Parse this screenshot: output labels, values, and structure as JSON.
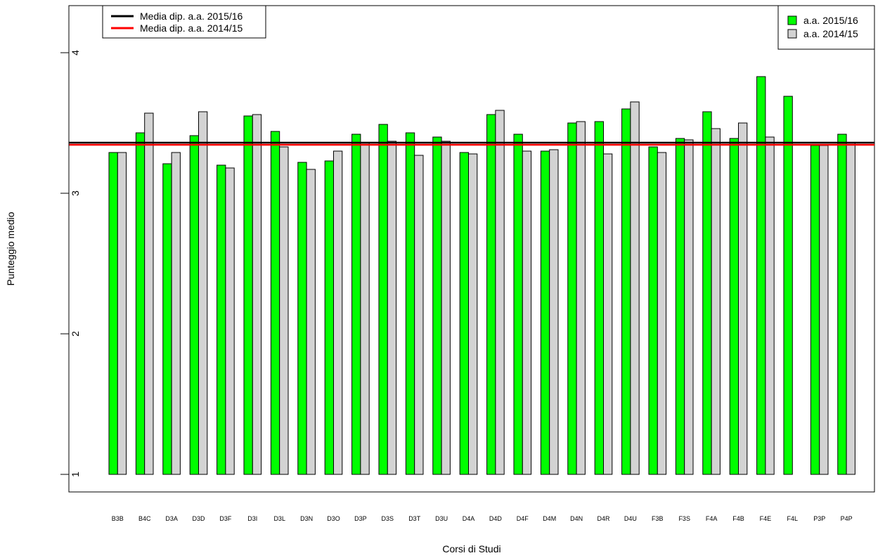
{
  "chart_data": {
    "type": "bar",
    "xlabel": "Corsi di Studi",
    "ylabel": "Punteggio medio",
    "ylim": [
      1,
      4.3
    ],
    "yticks": [
      1,
      2,
      3,
      4
    ],
    "grid": false,
    "categories": [
      "B3B",
      "B4C",
      "D3A",
      "D3D",
      "D3F",
      "D3I",
      "D3L",
      "D3N",
      "D3O",
      "D3P",
      "D3S",
      "D3T",
      "D3U",
      "D4A",
      "D4D",
      "D4F",
      "D4M",
      "D4N",
      "D4R",
      "D4U",
      "F3B",
      "F3S",
      "F4A",
      "F4B",
      "F4E",
      "F4L",
      "P3P",
      "P4P"
    ],
    "series": [
      {
        "name": "a.a. 2015/16",
        "color": "#00ff00",
        "values": [
          3.29,
          3.43,
          3.21,
          3.41,
          3.2,
          3.55,
          3.44,
          3.22,
          3.23,
          3.42,
          3.49,
          3.43,
          3.4,
          3.29,
          3.56,
          3.42,
          3.3,
          3.5,
          3.51,
          3.6,
          3.33,
          3.39,
          3.58,
          3.39,
          3.83,
          3.69,
          3.34,
          3.42
        ]
      },
      {
        "name": "a.a. 2014/15",
        "color": "#d3d3d3",
        "values": [
          3.29,
          3.57,
          3.29,
          3.58,
          3.18,
          3.56,
          3.33,
          3.17,
          3.3,
          3.36,
          3.37,
          3.27,
          3.37,
          3.28,
          3.59,
          3.3,
          3.31,
          3.51,
          3.28,
          3.65,
          3.29,
          3.38,
          3.46,
          3.5,
          3.4,
          null,
          3.34,
          3.36
        ]
      }
    ],
    "reference_lines": [
      {
        "name": "Media dip. a.a. 2015/16",
        "value": 3.36,
        "color": "#000000"
      },
      {
        "name": "Media dip. a.a. 2014/15",
        "value": 3.345,
        "color": "#ff0000"
      }
    ],
    "legends": {
      "lines": {
        "position": "top-left",
        "items": [
          "Media dip. a.a. 2015/16",
          "Media dip. a.a. 2014/15"
        ]
      },
      "bars": {
        "position": "top-right",
        "items": [
          "a.a. 2015/16",
          "a.a. 2014/15"
        ]
      }
    }
  }
}
